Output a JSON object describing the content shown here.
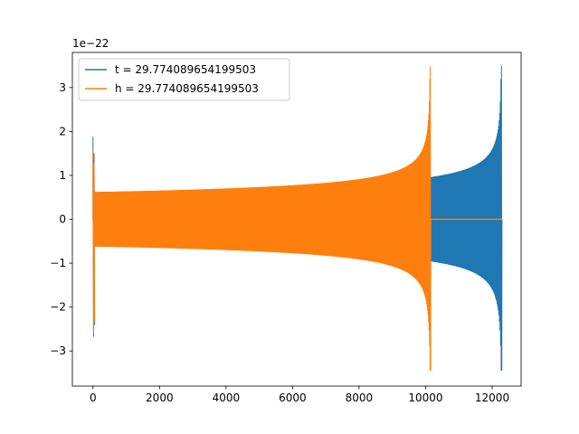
{
  "chart_data": {
    "type": "line",
    "title": "",
    "xlabel": "",
    "ylabel": "",
    "xlim": [
      -620,
      12870
    ],
    "ylim": [
      -3.8,
      3.8
    ],
    "y_offset_label": "1e−22",
    "x_ticks": [
      0,
      2000,
      4000,
      6000,
      8000,
      10000,
      12000
    ],
    "x_tick_labels": [
      "0",
      "2000",
      "4000",
      "6000",
      "8000",
      "10000",
      "12000"
    ],
    "y_ticks": [
      -3,
      -2,
      -1,
      0,
      1,
      2,
      3
    ],
    "y_tick_labels": [
      "−3",
      "−2",
      "−1",
      "0",
      "1",
      "2",
      "3"
    ],
    "grid": false,
    "legend_position": "top-left",
    "series": [
      {
        "name": "t = 29.774089654199503",
        "color": "#1f77b4",
        "description_points": {
          "start": 0,
          "merger": 12280,
          "end": 12300,
          "initial_amplitude": 0.62,
          "peak_max": 3.5,
          "peak_min": -3.45,
          "initial_spike_max": 1.88,
          "initial_spike_min": -2.68
        }
      },
      {
        "name": "h = 29.774089654199503",
        "color": "#ff7f0e",
        "description_points": {
          "start": 0,
          "merger": 10140,
          "end": 10150,
          "initial_amplitude": 0.62,
          "peak_max": 3.48,
          "peak_min": -3.45,
          "initial_spike_max": 1.6,
          "initial_spike_min": -2.6
        }
      }
    ]
  }
}
